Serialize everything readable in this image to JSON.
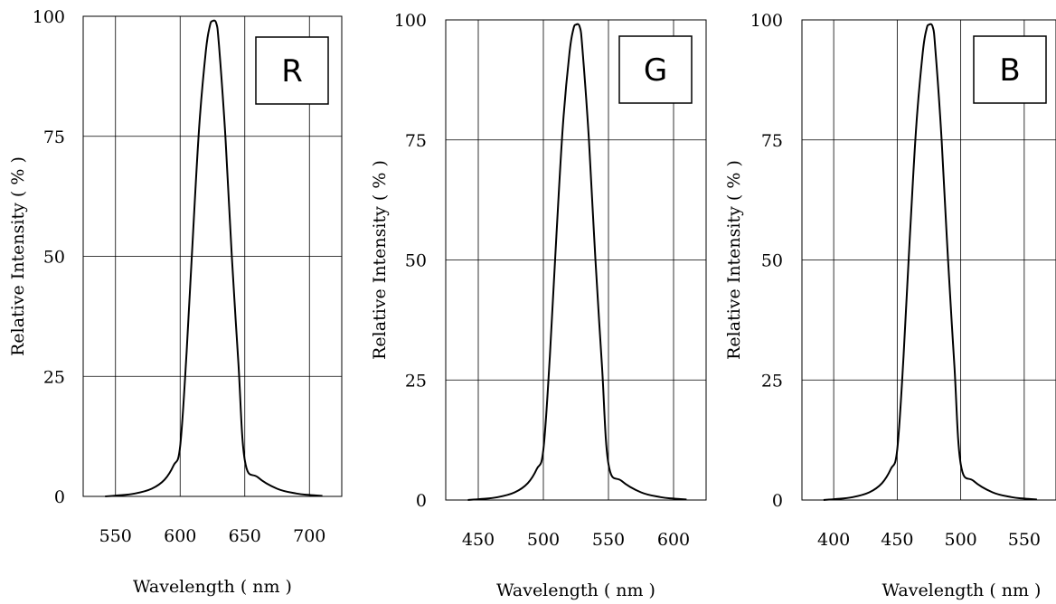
{
  "chart_data": [
    {
      "type": "line",
      "tag": "R",
      "xlabel": "Wavelength ( nm )",
      "ylabel": "Relative Intensity ( % )",
      "xticks": [
        550,
        600,
        650,
        700
      ],
      "yticks": [
        0,
        25,
        50,
        75,
        100
      ],
      "xlim": [
        525,
        725
      ],
      "ylim": [
        0,
        100
      ],
      "series": [
        {
          "x": [
            542,
            552,
            565,
            578,
            588,
            595,
            600,
            605,
            610,
            615,
            620,
            623,
            625,
            628,
            630,
            635,
            640,
            645,
            650,
            660,
            675,
            690,
            700,
            710
          ],
          "y": [
            0,
            0.2,
            0.6,
            1.6,
            3.5,
            6.5,
            10.5,
            30,
            55,
            78,
            93,
            98,
            99,
            98.5,
            94,
            75,
            50,
            28,
            7.5,
            4,
            1.6,
            0.6,
            0.3,
            0.1
          ]
        }
      ]
    },
    {
      "type": "line",
      "tag": "G",
      "xlabel": "Wavelength ( nm )",
      "ylabel": "Relative Intensity ( % )",
      "xticks": [
        450,
        500,
        550,
        600
      ],
      "yticks": [
        0,
        25,
        50,
        75,
        100
      ],
      "xlim": [
        425,
        625
      ],
      "ylim": [
        0,
        100
      ],
      "series": [
        {
          "x": [
            442,
            452,
            465,
            478,
            488,
            495,
            500,
            505,
            510,
            515,
            520,
            523,
            525,
            528,
            530,
            535,
            540,
            545,
            550,
            560,
            575,
            590,
            600,
            610
          ],
          "y": [
            0,
            0.2,
            0.6,
            1.6,
            3.5,
            6.5,
            10.5,
            30,
            55,
            78,
            93,
            98,
            99,
            98.5,
            94,
            75,
            50,
            28,
            7.5,
            4,
            1.6,
            0.6,
            0.3,
            0.1
          ]
        }
      ]
    },
    {
      "type": "line",
      "tag": "B",
      "xlabel": "Wavelength ( nm )",
      "ylabel": "Relative Intensity ( % )",
      "xticks": [
        400,
        450,
        500,
        550
      ],
      "yticks": [
        0,
        25,
        50,
        75,
        100
      ],
      "xlim": [
        375,
        575
      ],
      "ylim": [
        0,
        100
      ],
      "series": [
        {
          "x": [
            392,
            402,
            415,
            428,
            438,
            445,
            450,
            455,
            460,
            465,
            470,
            473,
            475,
            478,
            480,
            485,
            490,
            495,
            500,
            510,
            525,
            540,
            550,
            560
          ],
          "y": [
            0,
            0.2,
            0.6,
            1.6,
            3.5,
            6.5,
            10.5,
            30,
            55,
            78,
            93,
            98,
            99,
            98.5,
            94,
            75,
            50,
            28,
            7.5,
            4,
            1.6,
            0.6,
            0.3,
            0.1
          ]
        }
      ]
    }
  ]
}
